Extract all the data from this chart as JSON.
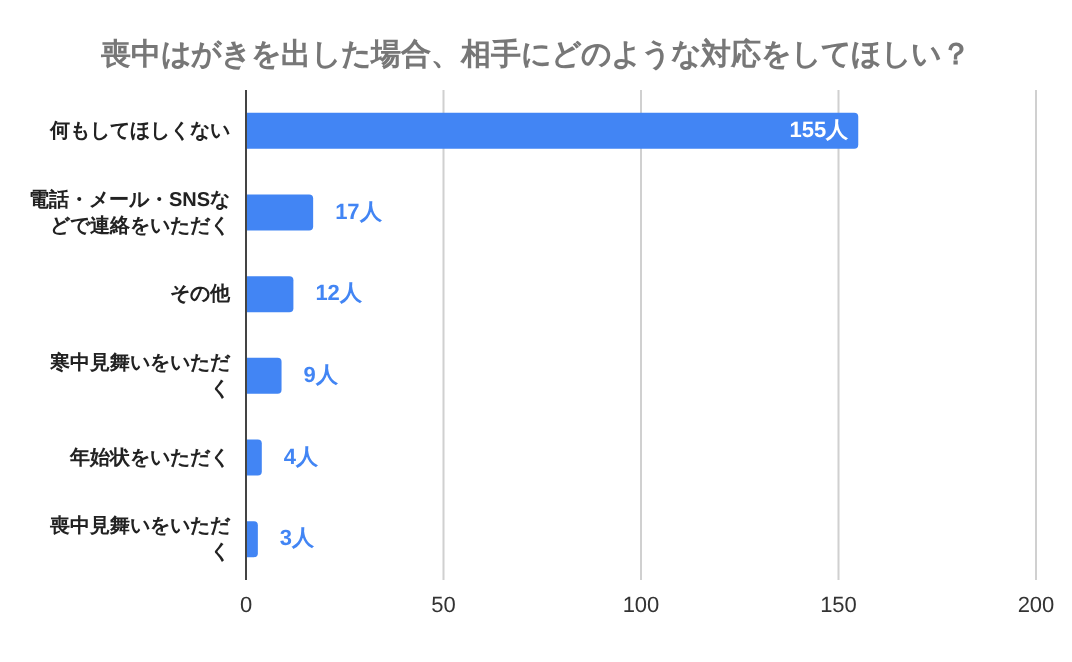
{
  "chart_data": {
    "type": "bar",
    "orientation": "horizontal",
    "title": "喪中はがきを出した場合、相手にどのような対応をしてほしい？",
    "categories": [
      "何もしてほしくない",
      "電話・メール・SNSなどで連絡をいただく",
      "その他",
      "寒中見舞いをいただく",
      "年始状をいただく",
      "喪中見舞いをいただく"
    ],
    "values": [
      155,
      17,
      12,
      9,
      4,
      3
    ],
    "value_labels": [
      "155人",
      "17人",
      "12人",
      "9人",
      "4人",
      "3人"
    ],
    "color": "#4285f4",
    "xlim": [
      0,
      200
    ],
    "xticks": [
      0,
      50,
      100,
      150,
      200
    ],
    "grid": "x"
  }
}
